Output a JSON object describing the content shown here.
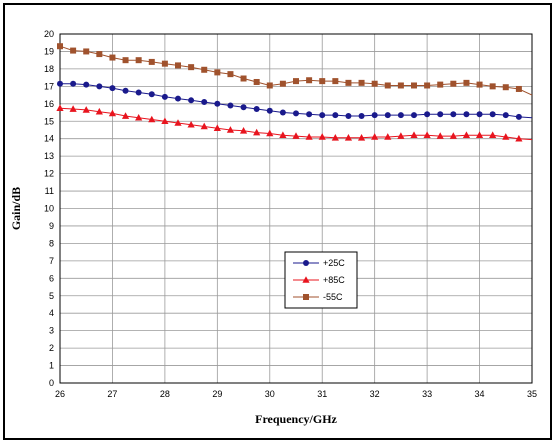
{
  "chart_data": {
    "type": "line",
    "title": "",
    "xlabel": "Frequency/GHz",
    "ylabel": "Gain/dB",
    "xlim": [
      26,
      35
    ],
    "ylim": [
      0,
      20
    ],
    "x_ticks": [
      "26",
      "27",
      "28",
      "29",
      "30",
      "31",
      "32",
      "33",
      "34",
      "35"
    ],
    "y_ticks": [
      "0",
      "1",
      "2",
      "3",
      "4",
      "5",
      "6",
      "7",
      "8",
      "9",
      "10",
      "11",
      "12",
      "13",
      "14",
      "15",
      "16",
      "17",
      "18",
      "19",
      "20"
    ],
    "x_tick_values": [
      26,
      27,
      28,
      29,
      30,
      31,
      32,
      33,
      34,
      35
    ],
    "y_tick_values": [
      0,
      1,
      2,
      3,
      4,
      5,
      6,
      7,
      8,
      9,
      10,
      11,
      12,
      13,
      14,
      15,
      16,
      17,
      18,
      19,
      20
    ],
    "grid": true,
    "legend_position": "center",
    "x": [
      26.0,
      26.25,
      26.5,
      26.75,
      27.0,
      27.25,
      27.5,
      27.75,
      28.0,
      28.25,
      28.5,
      28.75,
      29.0,
      29.25,
      29.5,
      29.75,
      30.0,
      30.25,
      30.5,
      30.75,
      31.0,
      31.25,
      31.5,
      31.75,
      32.0,
      32.25,
      32.5,
      32.75,
      33.0,
      33.25,
      33.5,
      33.75,
      34.0,
      34.25,
      34.5,
      34.75,
      35.0
    ],
    "series": [
      {
        "name": "+25C",
        "color": "#1a1a8c",
        "marker": "circle",
        "values": [
          17.15,
          17.15,
          17.1,
          17.0,
          16.9,
          16.75,
          16.65,
          16.55,
          16.4,
          16.3,
          16.2,
          16.1,
          16.0,
          15.9,
          15.8,
          15.7,
          15.6,
          15.5,
          15.45,
          15.4,
          15.35,
          15.35,
          15.3,
          15.3,
          15.35,
          15.35,
          15.35,
          15.35,
          15.4,
          15.4,
          15.4,
          15.4,
          15.4,
          15.4,
          15.35,
          15.25,
          15.2
        ]
      },
      {
        "name": "+85C",
        "color": "#e8141e",
        "marker": "triangle",
        "values": [
          15.75,
          15.7,
          15.65,
          15.55,
          15.45,
          15.3,
          15.2,
          15.1,
          15.0,
          14.9,
          14.8,
          14.7,
          14.6,
          14.5,
          14.45,
          14.35,
          14.3,
          14.2,
          14.15,
          14.1,
          14.1,
          14.05,
          14.05,
          14.05,
          14.1,
          14.1,
          14.15,
          14.2,
          14.2,
          14.15,
          14.15,
          14.2,
          14.2,
          14.2,
          14.1,
          14.0,
          13.95
        ]
      },
      {
        "name": "-55C",
        "color": "#a0522d",
        "marker": "square",
        "values": [
          19.3,
          19.05,
          19.0,
          18.85,
          18.65,
          18.5,
          18.5,
          18.4,
          18.3,
          18.2,
          18.1,
          17.95,
          17.8,
          17.7,
          17.45,
          17.25,
          17.05,
          17.15,
          17.3,
          17.35,
          17.3,
          17.3,
          17.2,
          17.2,
          17.15,
          17.05,
          17.05,
          17.05,
          17.05,
          17.1,
          17.15,
          17.2,
          17.1,
          17.0,
          16.95,
          16.85,
          16.5
        ]
      }
    ]
  }
}
